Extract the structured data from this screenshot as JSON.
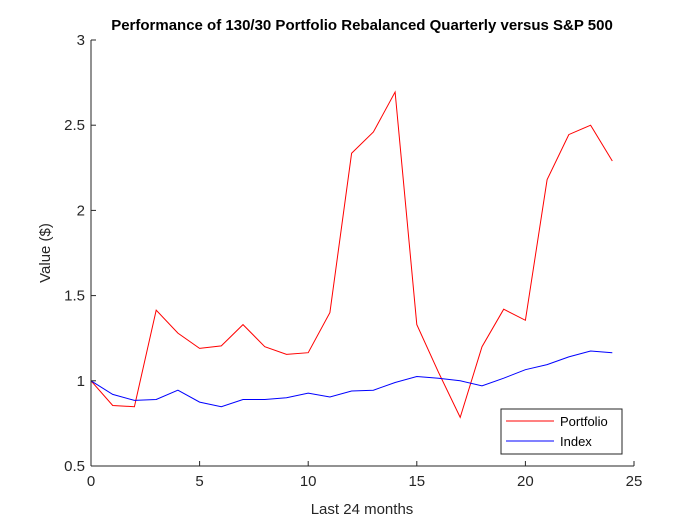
{
  "chart_data": {
    "type": "line",
    "title": "Performance of 130/30 Portfolio Rebalanced Quarterly versus S&P 500",
    "xlabel": "Last 24 months",
    "ylabel": "Value ($)",
    "xlim": [
      0,
      25
    ],
    "ylim": [
      0.5,
      3
    ],
    "xticks": [
      0,
      5,
      10,
      15,
      20,
      25
    ],
    "yticks": [
      0.5,
      1,
      1.5,
      2,
      2.5,
      3
    ],
    "xtick_labels": [
      "0",
      "5",
      "10",
      "15",
      "20",
      "25"
    ],
    "ytick_labels": [
      "0.5",
      "1",
      "1.5",
      "2",
      "2.5",
      "3"
    ],
    "grid": false,
    "legend_position": "bottom-right",
    "x": [
      0,
      1,
      2,
      3,
      4,
      5,
      6,
      7,
      8,
      9,
      10,
      11,
      12,
      13,
      14,
      15,
      16,
      17,
      18,
      19,
      20,
      21,
      22,
      23,
      24
    ],
    "series": [
      {
        "name": "Portfolio",
        "color": "#ff0000",
        "values": [
          1.0,
          0.855,
          0.848,
          1.415,
          1.28,
          1.19,
          1.205,
          1.33,
          1.2,
          1.155,
          1.165,
          1.4,
          2.335,
          2.46,
          2.695,
          1.33,
          1.05,
          0.785,
          1.2,
          1.42,
          1.355,
          2.18,
          2.445,
          2.5,
          2.29
        ]
      },
      {
        "name": "Index",
        "color": "#0000ff",
        "values": [
          1.0,
          0.92,
          0.885,
          0.89,
          0.945,
          0.875,
          0.848,
          0.89,
          0.89,
          0.9,
          0.928,
          0.905,
          0.94,
          0.945,
          0.99,
          1.025,
          1.015,
          1.0,
          0.97,
          1.015,
          1.065,
          1.095,
          1.14,
          1.175,
          1.165
        ]
      }
    ]
  }
}
